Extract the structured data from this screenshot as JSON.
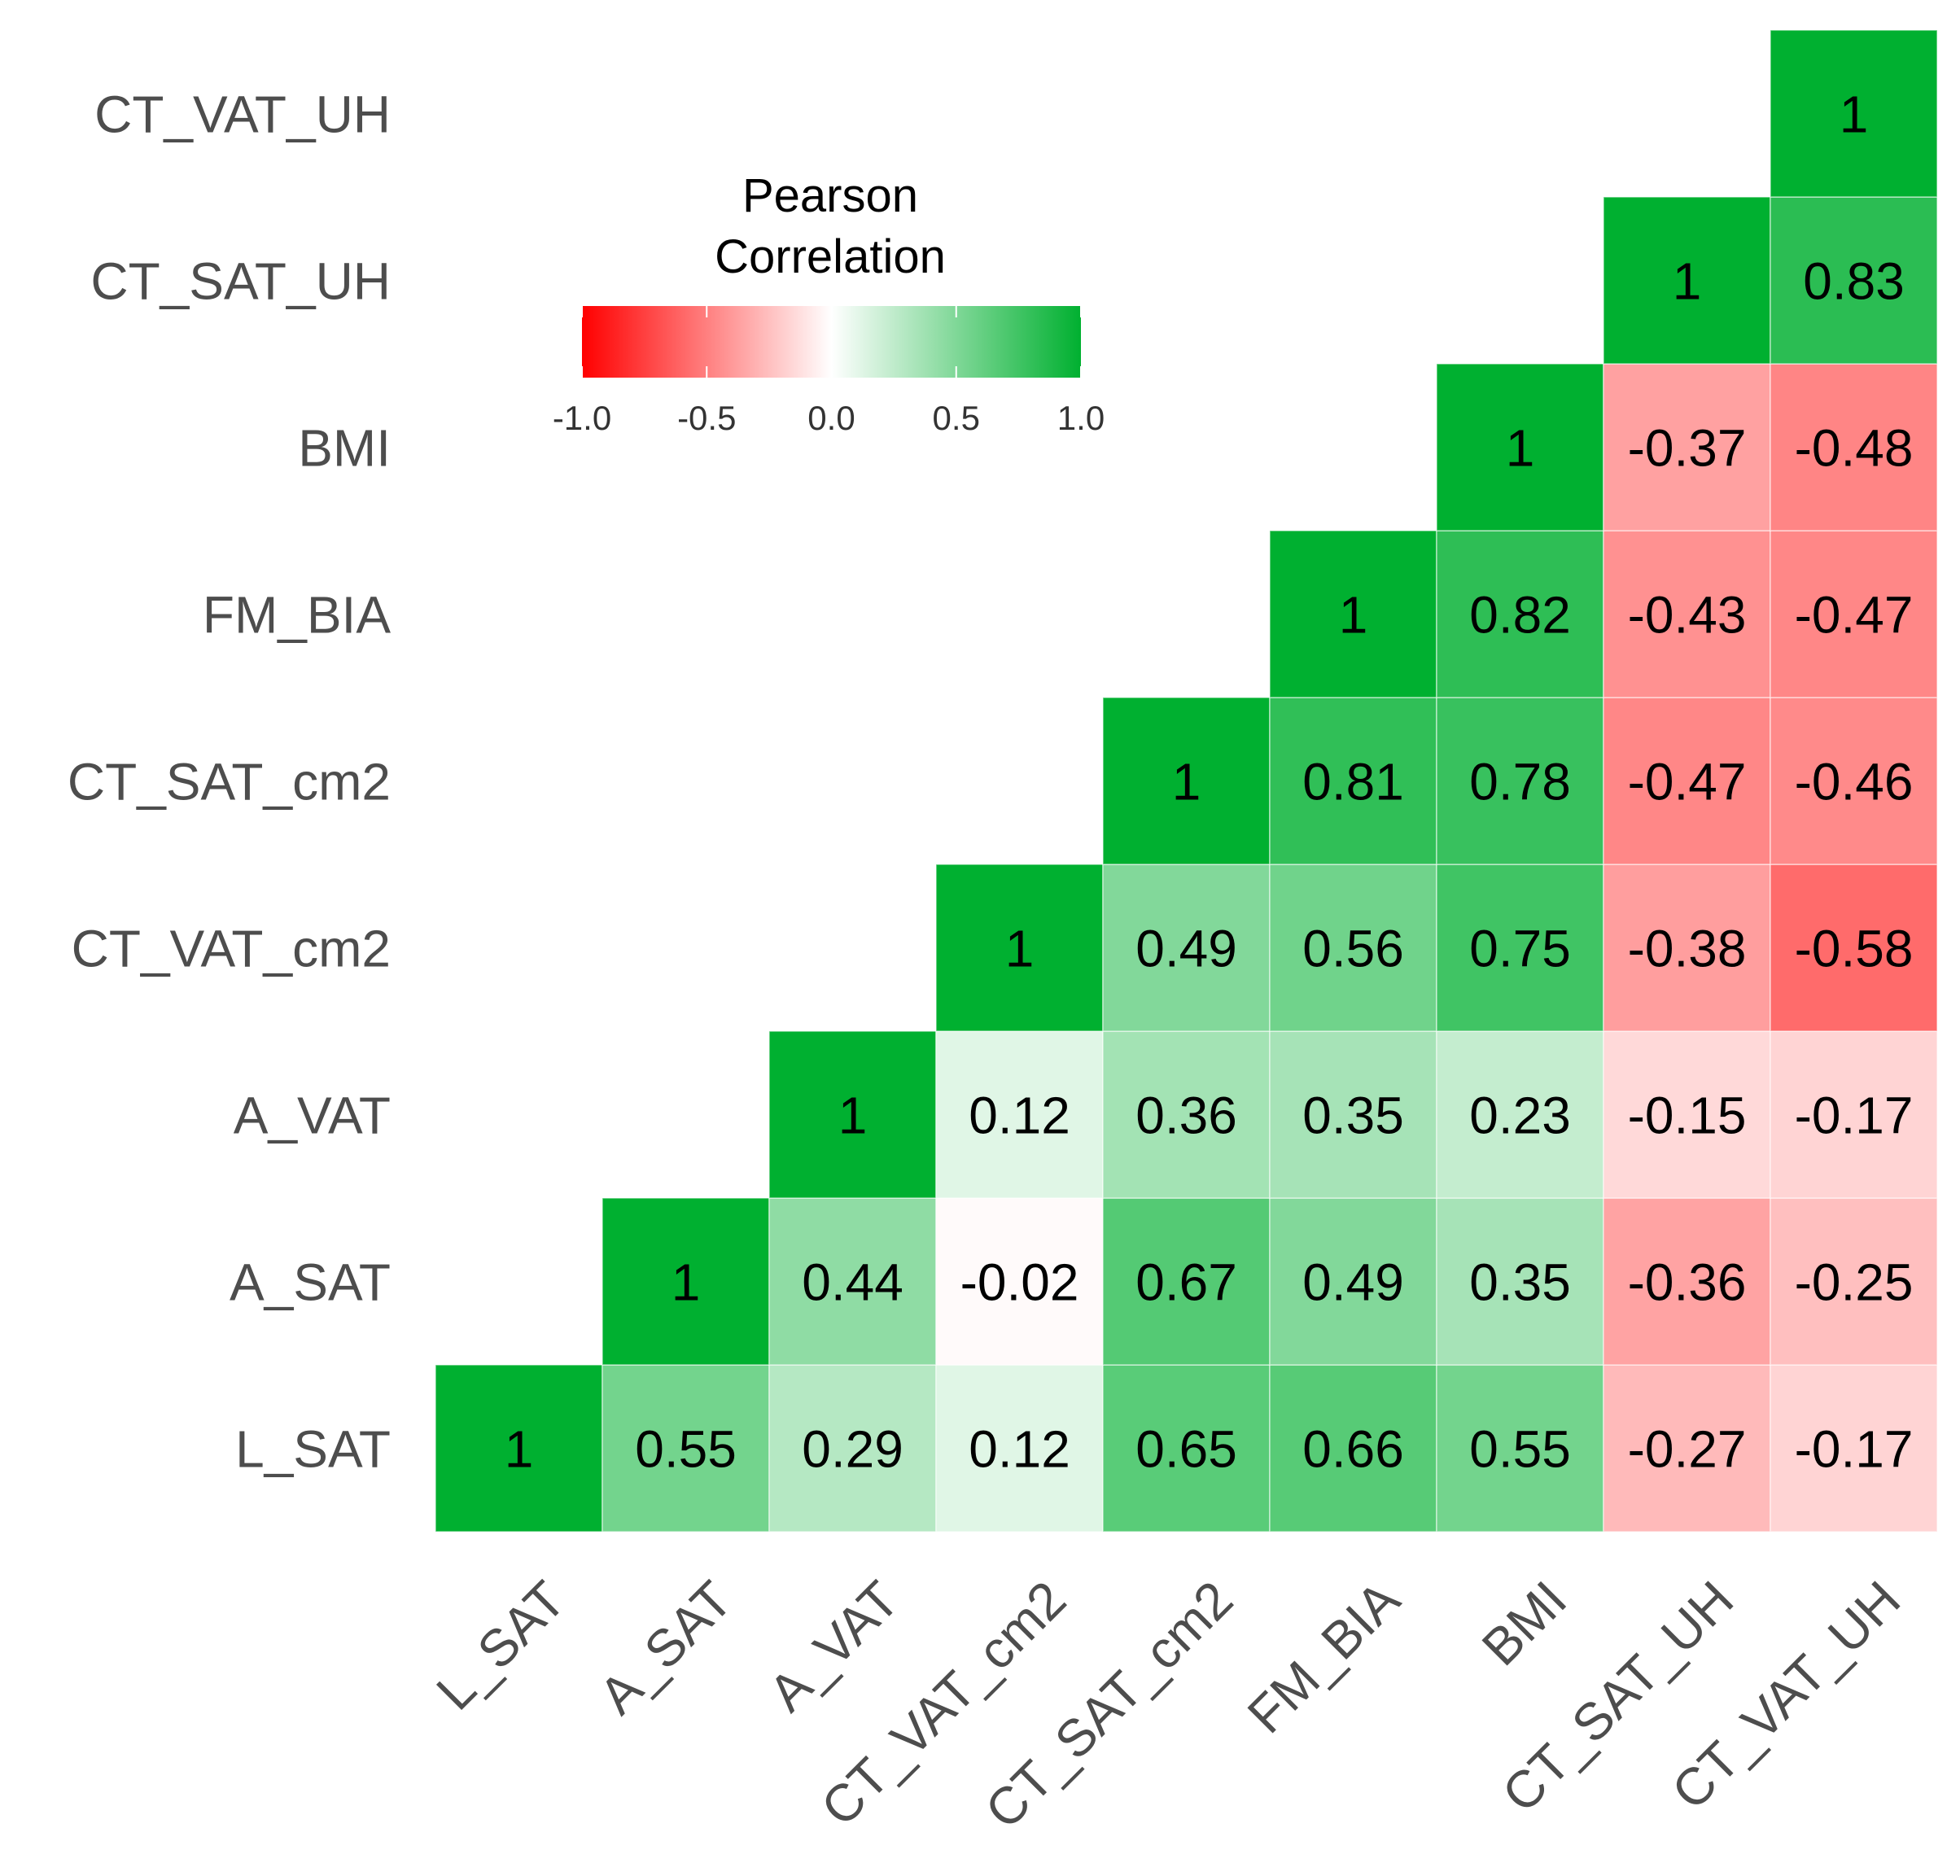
{
  "chart_data": {
    "type": "heatmap",
    "variables": [
      "L_SAT",
      "A_SAT",
      "A_VAT",
      "CT_VAT_cm2",
      "CT_SAT_cm2",
      "FM_BIA",
      "BMI",
      "CT_SAT_UH",
      "CT_VAT_UH"
    ],
    "cells": [
      {
        "row": "L_SAT",
        "col": "L_SAT",
        "value": 1,
        "label": "1"
      },
      {
        "row": "L_SAT",
        "col": "A_SAT",
        "value": 0.55,
        "label": "0.55"
      },
      {
        "row": "L_SAT",
        "col": "A_VAT",
        "value": 0.29,
        "label": "0.29"
      },
      {
        "row": "L_SAT",
        "col": "CT_VAT_cm2",
        "value": 0.12,
        "label": "0.12"
      },
      {
        "row": "L_SAT",
        "col": "CT_SAT_cm2",
        "value": 0.65,
        "label": "0.65"
      },
      {
        "row": "L_SAT",
        "col": "FM_BIA",
        "value": 0.66,
        "label": "0.66"
      },
      {
        "row": "L_SAT",
        "col": "BMI",
        "value": 0.55,
        "label": "0.55"
      },
      {
        "row": "L_SAT",
        "col": "CT_SAT_UH",
        "value": -0.27,
        "label": "-0.27"
      },
      {
        "row": "L_SAT",
        "col": "CT_VAT_UH",
        "value": -0.17,
        "label": "-0.17"
      },
      {
        "row": "A_SAT",
        "col": "A_SAT",
        "value": 1,
        "label": "1"
      },
      {
        "row": "A_SAT",
        "col": "A_VAT",
        "value": 0.44,
        "label": "0.44"
      },
      {
        "row": "A_SAT",
        "col": "CT_VAT_cm2",
        "value": -0.02,
        "label": "-0.02"
      },
      {
        "row": "A_SAT",
        "col": "CT_SAT_cm2",
        "value": 0.67,
        "label": "0.67"
      },
      {
        "row": "A_SAT",
        "col": "FM_BIA",
        "value": 0.49,
        "label": "0.49"
      },
      {
        "row": "A_SAT",
        "col": "BMI",
        "value": 0.35,
        "label": "0.35"
      },
      {
        "row": "A_SAT",
        "col": "CT_SAT_UH",
        "value": -0.36,
        "label": "-0.36"
      },
      {
        "row": "A_SAT",
        "col": "CT_VAT_UH",
        "value": -0.25,
        "label": "-0.25"
      },
      {
        "row": "A_VAT",
        "col": "A_VAT",
        "value": 1,
        "label": "1"
      },
      {
        "row": "A_VAT",
        "col": "CT_VAT_cm2",
        "value": 0.12,
        "label": "0.12"
      },
      {
        "row": "A_VAT",
        "col": "CT_SAT_cm2",
        "value": 0.36,
        "label": "0.36"
      },
      {
        "row": "A_VAT",
        "col": "FM_BIA",
        "value": 0.35,
        "label": "0.35"
      },
      {
        "row": "A_VAT",
        "col": "BMI",
        "value": 0.23,
        "label": "0.23"
      },
      {
        "row": "A_VAT",
        "col": "CT_SAT_UH",
        "value": -0.15,
        "label": "-0.15"
      },
      {
        "row": "A_VAT",
        "col": "CT_VAT_UH",
        "value": -0.17,
        "label": "-0.17"
      },
      {
        "row": "CT_VAT_cm2",
        "col": "CT_VAT_cm2",
        "value": 1,
        "label": "1"
      },
      {
        "row": "CT_VAT_cm2",
        "col": "CT_SAT_cm2",
        "value": 0.49,
        "label": "0.49"
      },
      {
        "row": "CT_VAT_cm2",
        "col": "FM_BIA",
        "value": 0.56,
        "label": "0.56"
      },
      {
        "row": "CT_VAT_cm2",
        "col": "BMI",
        "value": 0.75,
        "label": "0.75"
      },
      {
        "row": "CT_VAT_cm2",
        "col": "CT_SAT_UH",
        "value": -0.38,
        "label": "-0.38"
      },
      {
        "row": "CT_VAT_cm2",
        "col": "CT_VAT_UH",
        "value": -0.58,
        "label": "-0.58"
      },
      {
        "row": "CT_SAT_cm2",
        "col": "CT_SAT_cm2",
        "value": 1,
        "label": "1"
      },
      {
        "row": "CT_SAT_cm2",
        "col": "FM_BIA",
        "value": 0.81,
        "label": "0.81"
      },
      {
        "row": "CT_SAT_cm2",
        "col": "BMI",
        "value": 0.78,
        "label": "0.78"
      },
      {
        "row": "CT_SAT_cm2",
        "col": "CT_SAT_UH",
        "value": -0.47,
        "label": "-0.47"
      },
      {
        "row": "CT_SAT_cm2",
        "col": "CT_VAT_UH",
        "value": -0.46,
        "label": "-0.46"
      },
      {
        "row": "FM_BIA",
        "col": "FM_BIA",
        "value": 1,
        "label": "1"
      },
      {
        "row": "FM_BIA",
        "col": "BMI",
        "value": 0.82,
        "label": "0.82"
      },
      {
        "row": "FM_BIA",
        "col": "CT_SAT_UH",
        "value": -0.43,
        "label": "-0.43"
      },
      {
        "row": "FM_BIA",
        "col": "CT_VAT_UH",
        "value": -0.47,
        "label": "-0.47"
      },
      {
        "row": "BMI",
        "col": "BMI",
        "value": 1,
        "label": "1"
      },
      {
        "row": "BMI",
        "col": "CT_SAT_UH",
        "value": -0.37,
        "label": "-0.37"
      },
      {
        "row": "BMI",
        "col": "CT_VAT_UH",
        "value": -0.48,
        "label": "-0.48"
      },
      {
        "row": "CT_SAT_UH",
        "col": "CT_SAT_UH",
        "value": 1,
        "label": "1"
      },
      {
        "row": "CT_SAT_UH",
        "col": "CT_VAT_UH",
        "value": 0.83,
        "label": "0.83"
      },
      {
        "row": "CT_VAT_UH",
        "col": "CT_VAT_UH",
        "value": 1,
        "label": "1"
      }
    ],
    "legend": {
      "title_lines": [
        "Pearson",
        "Correlation"
      ],
      "range": [
        -1,
        1
      ],
      "ticks": [
        -1.0,
        -0.5,
        0.0,
        0.5,
        1.0
      ],
      "tick_labels": [
        "-1.0",
        "-0.5",
        "0.0",
        "0.5",
        "1.0"
      ],
      "placement": "top-left inside plot",
      "colors": {
        "low": "#ff0000",
        "mid": "#ffffff",
        "high": "#00b030"
      }
    }
  }
}
